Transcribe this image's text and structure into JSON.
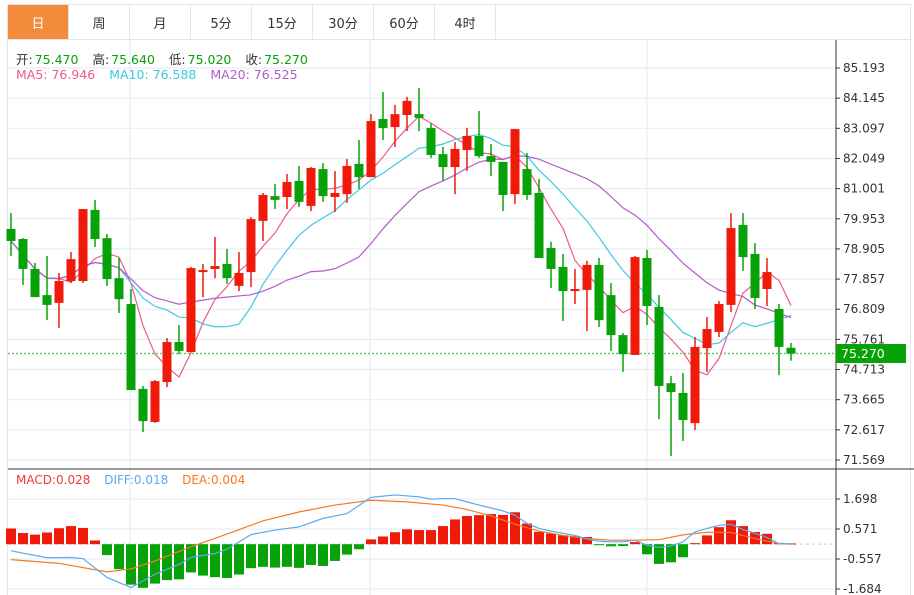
{
  "tabs": [
    {
      "label": "日",
      "active": true
    },
    {
      "label": "周"
    },
    {
      "label": "月"
    },
    {
      "label": "5分"
    },
    {
      "label": "15分"
    },
    {
      "label": "30分"
    },
    {
      "label": "60分"
    },
    {
      "label": "4时"
    }
  ],
  "ohlc_labels": {
    "open_label": "开:",
    "open": "75.470",
    "high_label": "高:",
    "high": "75.640",
    "low_label": "低:",
    "low": "75.020",
    "close_label": "收:",
    "close": "75.270"
  },
  "ma_labels": {
    "ma5": "MA5: 76.946",
    "ma10": "MA10: 76.588",
    "ma20": "MA20: 76.525"
  },
  "macd_labels": {
    "macd": "MACD:0.028",
    "diff": "DIFF:0.018",
    "dea": "DEA:0.004"
  },
  "current_price": "75.270",
  "colors": {
    "up": "#f01a0a",
    "down": "#07a207",
    "ma5": "#ee5a8a",
    "ma10": "#3fc8e0",
    "ma20": "#b45ac8",
    "diff": "#5aaaf0",
    "dea": "#f57a20",
    "accent": "#f28c3c"
  },
  "chart_data": [
    {
      "type": "candlestick",
      "title": "",
      "ylim": [
        71.569,
        85.193
      ],
      "yticks": [
        "85.193",
        "84.145",
        "83.097",
        "82.049",
        "81.001",
        "79.953",
        "78.905",
        "77.857",
        "76.809",
        "75.761",
        "74.713",
        "73.665",
        "72.617",
        "71.569"
      ],
      "ohlc": [
        [
          79.6,
          80.15,
          78.66,
          79.18
        ],
        [
          79.25,
          79.28,
          77.65,
          78.21
        ],
        [
          78.21,
          78.42,
          77.23,
          77.23
        ],
        [
          77.3,
          78.66,
          76.43,
          76.96
        ],
        [
          77.03,
          78.07,
          76.16,
          77.79
        ],
        [
          77.79,
          78.8,
          77.72,
          78.55
        ],
        [
          77.79,
          80.29,
          77.72,
          80.29
        ],
        [
          80.26,
          80.61,
          78.97,
          79.25
        ],
        [
          79.28,
          79.42,
          77.62,
          77.86
        ],
        [
          77.89,
          78.59,
          76.68,
          77.16
        ],
        [
          76.99,
          77.51,
          74.0,
          74.0
        ],
        [
          74.04,
          74.14,
          72.54,
          72.92
        ],
        [
          72.89,
          74.35,
          72.86,
          74.31
        ],
        [
          74.28,
          75.81,
          74.1,
          75.67
        ],
        [
          75.67,
          76.26,
          75.25,
          75.36
        ],
        [
          75.32,
          78.28,
          75.32,
          78.24
        ],
        [
          78.1,
          78.38,
          77.23,
          78.17
        ],
        [
          78.21,
          79.32,
          77.89,
          78.31
        ],
        [
          78.38,
          78.9,
          77.69,
          77.89
        ],
        [
          77.62,
          78.8,
          77.44,
          78.07
        ],
        [
          78.1,
          80.01,
          77.58,
          79.94
        ],
        [
          79.88,
          80.85,
          79.18,
          80.78
        ],
        [
          80.74,
          81.16,
          80.29,
          80.61
        ],
        [
          80.71,
          81.51,
          80.29,
          81.23
        ],
        [
          81.27,
          81.79,
          80.36,
          80.54
        ],
        [
          80.4,
          81.75,
          80.22,
          81.72
        ],
        [
          81.68,
          81.89,
          80.54,
          80.74
        ],
        [
          80.71,
          81.61,
          80.19,
          80.85
        ],
        [
          80.81,
          82.03,
          80.5,
          81.79
        ],
        [
          81.86,
          82.69,
          80.99,
          81.4
        ],
        [
          81.4,
          83.59,
          81.4,
          83.35
        ],
        [
          83.42,
          84.36,
          82.69,
          83.11
        ],
        [
          83.14,
          83.91,
          82.45,
          83.59
        ],
        [
          83.56,
          84.19,
          83.0,
          84.05
        ],
        [
          83.59,
          84.5,
          83.0,
          83.46
        ],
        [
          83.11,
          83.28,
          82.07,
          82.17
        ],
        [
          82.2,
          82.45,
          81.27,
          81.75
        ],
        [
          81.75,
          82.62,
          80.81,
          82.38
        ],
        [
          82.34,
          83.11,
          81.61,
          82.83
        ],
        [
          82.83,
          83.7,
          82.07,
          82.13
        ],
        [
          82.13,
          82.55,
          81.44,
          81.93
        ],
        [
          81.93,
          81.93,
          80.22,
          80.78
        ],
        [
          80.81,
          83.07,
          80.47,
          83.07
        ],
        [
          81.68,
          82.24,
          80.61,
          80.78
        ],
        [
          80.85,
          81.34,
          78.59,
          78.59
        ],
        [
          78.94,
          79.15,
          77.55,
          78.21
        ],
        [
          78.28,
          78.73,
          76.4,
          77.44
        ],
        [
          77.44,
          78.21,
          76.99,
          77.51
        ],
        [
          77.48,
          78.49,
          76.05,
          78.35
        ],
        [
          78.35,
          78.59,
          76.19,
          76.43
        ],
        [
          77.3,
          77.72,
          75.36,
          75.91
        ],
        [
          75.91,
          75.98,
          74.63,
          75.25
        ],
        [
          75.22,
          78.66,
          75.22,
          78.62
        ],
        [
          78.59,
          78.87,
          76.26,
          76.92
        ],
        [
          76.89,
          77.3,
          72.99,
          74.14
        ],
        [
          74.24,
          74.49,
          71.71,
          73.93
        ],
        [
          73.9,
          74.59,
          72.23,
          72.96
        ],
        [
          72.85,
          75.84,
          72.61,
          75.5
        ],
        [
          75.46,
          76.54,
          74.63,
          76.12
        ],
        [
          76.02,
          77.09,
          75.84,
          76.99
        ],
        [
          76.96,
          80.15,
          76.71,
          79.63
        ],
        [
          79.74,
          80.15,
          78.14,
          78.62
        ],
        [
          78.73,
          79.11,
          76.82,
          77.2
        ],
        [
          77.51,
          78.59,
          76.92,
          78.1
        ],
        [
          76.82,
          76.99,
          74.52,
          75.5
        ],
        [
          75.47,
          75.64,
          75.02,
          75.27
        ]
      ],
      "ma_periods": [
        5,
        10,
        20
      ]
    },
    {
      "type": "bar+line",
      "title": "MACD",
      "ylim": [
        -1.684,
        1.698
      ],
      "yticks": [
        "1.698",
        "0.571",
        "-0.557",
        "-1.684"
      ],
      "macd_hist": [
        0.59,
        0.42,
        0.36,
        0.44,
        0.6,
        0.68,
        0.61,
        0.14,
        -0.41,
        -0.94,
        -1.52,
        -1.64,
        -1.48,
        -1.35,
        -1.32,
        -1.06,
        -1.18,
        -1.24,
        -1.27,
        -1.14,
        -0.9,
        -0.85,
        -0.88,
        -0.85,
        -0.89,
        -0.78,
        -0.82,
        -0.63,
        -0.39,
        -0.19,
        0.18,
        0.29,
        0.45,
        0.56,
        0.53,
        0.53,
        0.68,
        0.93,
        1.06,
        1.09,
        1.13,
        1.1,
        1.2,
        0.78,
        0.46,
        0.4,
        0.33,
        0.31,
        0.27,
        -0.01,
        -0.08,
        -0.07,
        0.08,
        -0.38,
        -0.74,
        -0.68,
        -0.49,
        0.04,
        0.33,
        0.64,
        0.9,
        0.68,
        0.46,
        0.39,
        0.05,
        0.028
      ],
      "diff_points": [
        [
          0,
          -0.25
        ],
        [
          3,
          -0.51
        ],
        [
          5,
          -0.5
        ],
        [
          6,
          -0.54
        ],
        [
          8,
          -1.25
        ],
        [
          10,
          -1.63
        ],
        [
          12,
          -1.13
        ],
        [
          14,
          -0.76
        ],
        [
          15,
          -0.5
        ],
        [
          17,
          -0.35
        ],
        [
          18,
          -0.19
        ],
        [
          20,
          0.36
        ],
        [
          22,
          0.53
        ],
        [
          24,
          0.65
        ],
        [
          26,
          0.97
        ],
        [
          28,
          1.15
        ],
        [
          30,
          1.76
        ],
        [
          32,
          1.85
        ],
        [
          34,
          1.78
        ],
        [
          35,
          1.69
        ],
        [
          36,
          1.72
        ],
        [
          37,
          1.71
        ],
        [
          38,
          1.59
        ],
        [
          39,
          1.47
        ],
        [
          40,
          1.36
        ],
        [
          41,
          1.25
        ],
        [
          42,
          1.09
        ],
        [
          43,
          0.78
        ],
        [
          44,
          0.59
        ],
        [
          45,
          0.49
        ],
        [
          46,
          0.41
        ],
        [
          47,
          0.33
        ],
        [
          48,
          0.19
        ],
        [
          49,
          0.11
        ],
        [
          50,
          0.09
        ],
        [
          51,
          0.09
        ],
        [
          52,
          0.15
        ],
        [
          53,
          -0.04
        ],
        [
          54,
          -0.12
        ],
        [
          55,
          -0.07
        ],
        [
          56,
          0.09
        ],
        [
          57,
          0.46
        ],
        [
          58,
          0.59
        ],
        [
          59,
          0.71
        ],
        [
          60,
          0.75
        ],
        [
          61,
          0.55
        ],
        [
          62,
          0.41
        ],
        [
          63,
          0.25
        ],
        [
          64,
          0.02
        ],
        [
          65,
          0.018
        ]
      ],
      "dea_points": [
        [
          0,
          -0.58
        ],
        [
          4,
          -0.72
        ],
        [
          8,
          -1.04
        ],
        [
          10,
          -0.93
        ],
        [
          12,
          -0.63
        ],
        [
          15,
          -0.1
        ],
        [
          18,
          0.38
        ],
        [
          21,
          0.88
        ],
        [
          24,
          1.21
        ],
        [
          27,
          1.47
        ],
        [
          30,
          1.65
        ],
        [
          33,
          1.59
        ],
        [
          36,
          1.47
        ],
        [
          38,
          1.3
        ],
        [
          40,
          1.06
        ],
        [
          42,
          0.75
        ],
        [
          44,
          0.49
        ],
        [
          46,
          0.33
        ],
        [
          48,
          0.21
        ],
        [
          50,
          0.15
        ],
        [
          52,
          0.15
        ],
        [
          54,
          0.17
        ],
        [
          56,
          0.35
        ],
        [
          58,
          0.45
        ],
        [
          60,
          0.44
        ],
        [
          62,
          0.21
        ],
        [
          64,
          0.02
        ],
        [
          65,
          0.004
        ]
      ]
    }
  ]
}
